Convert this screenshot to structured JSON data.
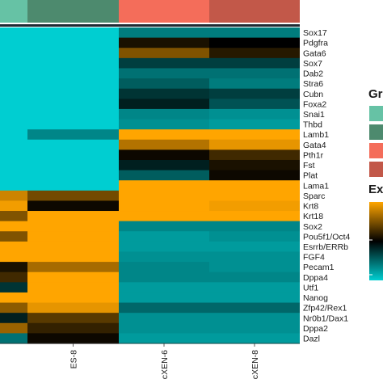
{
  "chart_data": {
    "type": "heatmap",
    "columns": [
      "",
      "ES-8",
      "cXEN-6",
      "cXEN-8"
    ],
    "column_groups": [
      "",
      "",
      "",
      ""
    ],
    "group_colors": {
      "es": [
        "#66c2a5",
        "#4d8a6e"
      ],
      "cxen": [
        "#f46d5a",
        "#c25849"
      ]
    },
    "rows": [
      "Sox17",
      "Pdgfra",
      "Gata6",
      "Sox7",
      "Dab2",
      "Stra6",
      "Cubn",
      "Foxa2",
      "Snai1",
      "Thbd",
      "Lamb1",
      "Gata4",
      "Pth1r",
      "Fst",
      "Plat",
      "Lama1",
      "Sparc",
      "Krt8",
      "Krt18",
      "Sox2",
      "Pou5f1/Oct4",
      "Esrrb/ERRb",
      "FGF4",
      "Pecam1",
      "Dppa4",
      "Utf1",
      "Nanog",
      "Zfp42/Rex1",
      "Nr0b1/Dax1",
      "Dppa2",
      "Dazl"
    ],
    "color_scale": {
      "low": "#00ced1",
      "mid": "#000000",
      "high": "#ffa500",
      "min": -2,
      "max": 2
    },
    "legend_titles": [
      "Gr",
      "Ex"
    ],
    "values": [
      [
        -2.0,
        -2.0,
        -1.2,
        -1.2
      ],
      [
        -2.0,
        -2.0,
        0.2,
        0.0
      ],
      [
        -2.0,
        -2.0,
        1.0,
        0.3
      ],
      [
        -2.0,
        -2.0,
        -0.6,
        -0.6
      ],
      [
        -2.0,
        -2.0,
        -1.1,
        -1.1
      ],
      [
        -2.0,
        -2.0,
        -0.9,
        -1.2
      ],
      [
        -2.0,
        -2.0,
        -0.5,
        -0.6
      ],
      [
        -2.0,
        -2.0,
        -0.3,
        -0.8
      ],
      [
        -2.0,
        -2.0,
        -1.3,
        -1.4
      ],
      [
        -2.0,
        -2.0,
        -1.4,
        -1.5
      ],
      [
        -2.0,
        -1.3,
        2.0,
        2.0
      ],
      [
        -2.0,
        -2.0,
        1.4,
        1.8
      ],
      [
        -2.0,
        -2.0,
        0.1,
        0.5
      ],
      [
        -2.0,
        -2.0,
        -0.3,
        0.2
      ],
      [
        -2.0,
        -2.0,
        -0.9,
        0.1
      ],
      [
        -2.0,
        -2.0,
        2.0,
        2.0
      ],
      [
        1.6,
        0.9,
        2.0,
        2.0
      ],
      [
        1.9,
        0.1,
        2.0,
        1.9
      ],
      [
        1.0,
        2.0,
        2.0,
        2.0
      ],
      [
        2.0,
        2.0,
        -1.3,
        -1.3
      ],
      [
        1.0,
        2.0,
        -1.5,
        -1.4
      ],
      [
        2.0,
        2.0,
        -1.5,
        -1.5
      ],
      [
        2.0,
        2.0,
        -1.4,
        -1.4
      ],
      [
        0.2,
        1.3,
        -1.3,
        -1.4
      ],
      [
        0.5,
        2.0,
        -1.3,
        -1.3
      ],
      [
        -0.5,
        2.0,
        -1.5,
        -1.5
      ],
      [
        2.0,
        2.0,
        -1.5,
        -1.5
      ],
      [
        1.1,
        1.8,
        -1.0,
        -1.0
      ],
      [
        -0.3,
        0.7,
        -1.4,
        -1.4
      ],
      [
        1.2,
        0.4,
        -1.4,
        -1.4
      ],
      [
        -1.1,
        0.1,
        -1.5,
        -1.5
      ]
    ]
  }
}
